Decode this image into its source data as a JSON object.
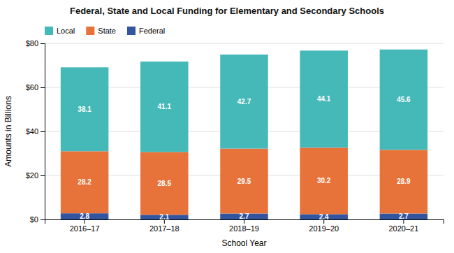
{
  "chart_data": {
    "type": "bar",
    "title": "Federal, State and Local Funding for Elementary and Secondary Schools",
    "xlabel": "School Year",
    "ylabel": "Amounts in Billions",
    "categories": [
      "2016–17",
      "2017–18",
      "2018–19",
      "2019–20",
      "2020–21"
    ],
    "series": [
      {
        "name": "Federal",
        "color": "#3355a0",
        "values": [
          2.8,
          2.1,
          2.7,
          2.4,
          2.7
        ]
      },
      {
        "name": "State",
        "color": "#e8733a",
        "values": [
          28.2,
          28.5,
          29.5,
          30.2,
          28.9
        ]
      },
      {
        "name": "Local",
        "color": "#45b8b8",
        "values": [
          38.1,
          41.1,
          42.7,
          44.1,
          45.6
        ]
      }
    ],
    "stacked": true,
    "data_labels": true,
    "ylim": [
      0,
      80
    ],
    "yticks": [
      {
        "value": 0,
        "label": "$0"
      },
      {
        "value": 20,
        "label": "$20"
      },
      {
        "value": 40,
        "label": "$40"
      },
      {
        "value": 60,
        "label": "$60"
      },
      {
        "value": 80,
        "label": "$80"
      }
    ],
    "grid": true,
    "legend": "upper left"
  }
}
